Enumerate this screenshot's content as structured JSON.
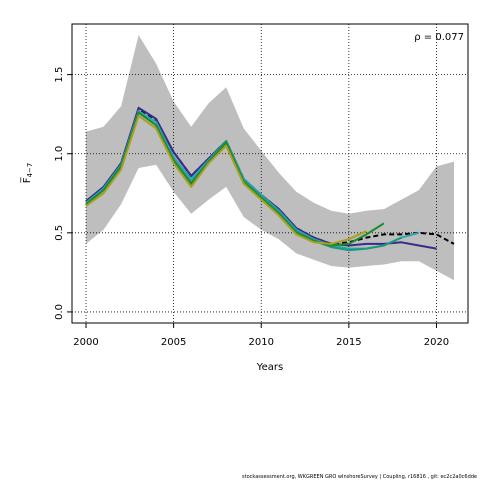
{
  "chart_data": {
    "type": "line",
    "xlabel": "Years",
    "ylabel": "F̅",
    "ylabel_sub": "4−7",
    "annotation": "ρ = 0.077",
    "xlim": [
      1999.2,
      2021.8
    ],
    "ylim": [
      -0.07,
      1.82
    ],
    "xticks": [
      2000,
      2005,
      2010,
      2015,
      2020
    ],
    "yticks": [
      0.0,
      0.5,
      1.0,
      1.5
    ],
    "ytick_labels": [
      "0.0",
      "0.5",
      "1.0",
      "1.5"
    ],
    "grid": true,
    "band": {
      "color": "#bebebe",
      "x": [
        2000,
        2001,
        2002,
        2003,
        2004,
        2005,
        2006,
        2007,
        2008,
        2009,
        2010,
        2011,
        2012,
        2013,
        2014,
        2015,
        2016,
        2017,
        2018,
        2019,
        2020,
        2021
      ],
      "upper": [
        1.14,
        1.17,
        1.3,
        1.75,
        1.57,
        1.33,
        1.17,
        1.32,
        1.42,
        1.16,
        1.02,
        0.88,
        0.76,
        0.69,
        0.64,
        0.62,
        0.64,
        0.65,
        0.71,
        0.77,
        0.92,
        0.95
      ],
      "lower": [
        0.43,
        0.52,
        0.68,
        0.91,
        0.93,
        0.76,
        0.62,
        0.71,
        0.79,
        0.6,
        0.52,
        0.46,
        0.37,
        0.33,
        0.29,
        0.28,
        0.29,
        0.3,
        0.32,
        0.32,
        0.26,
        0.2
      ]
    },
    "series": [
      {
        "color": "#000000",
        "dashed": true,
        "x": [
          2000,
          2001,
          2002,
          2003,
          2004,
          2005,
          2006,
          2007,
          2008,
          2009,
          2010,
          2011,
          2012,
          2013,
          2014,
          2015,
          2016,
          2017,
          2018,
          2019,
          2020,
          2021
        ],
        "values": [
          0.7,
          0.78,
          0.94,
          1.28,
          1.21,
          1.01,
          0.86,
          0.97,
          1.08,
          0.84,
          0.74,
          0.65,
          0.53,
          0.47,
          0.43,
          0.44,
          0.47,
          0.49,
          0.49,
          0.5,
          0.49,
          0.43
        ]
      },
      {
        "color": "#3a2a8a",
        "x": [
          2000,
          2001,
          2002,
          2003,
          2004,
          2005,
          2006,
          2007,
          2008,
          2009,
          2010,
          2011,
          2012,
          2013,
          2014,
          2015,
          2016,
          2017,
          2018,
          2019,
          2020
        ],
        "values": [
          0.7,
          0.79,
          0.94,
          1.29,
          1.22,
          1.01,
          0.86,
          0.97,
          1.08,
          0.84,
          0.74,
          0.65,
          0.53,
          0.47,
          0.43,
          0.42,
          0.43,
          0.43,
          0.44,
          0.42,
          0.4
        ]
      },
      {
        "color": "#2aa6b8",
        "x": [
          2000,
          2001,
          2002,
          2003,
          2004,
          2005,
          2006,
          2007,
          2008,
          2009,
          2010,
          2011,
          2012,
          2013,
          2014,
          2015,
          2016,
          2017,
          2018,
          2019
        ],
        "values": [
          0.69,
          0.78,
          0.93,
          1.27,
          1.2,
          0.98,
          0.84,
          0.96,
          1.08,
          0.84,
          0.74,
          0.64,
          0.52,
          0.46,
          0.42,
          0.4,
          0.4,
          0.42,
          0.47,
          0.5
        ]
      },
      {
        "color": "#1a9a78",
        "x": [
          2000,
          2001,
          2002,
          2003,
          2004,
          2005,
          2006,
          2007,
          2008,
          2009,
          2010,
          2011,
          2012,
          2013,
          2014,
          2015,
          2016,
          2017,
          2018
        ],
        "values": [
          0.68,
          0.77,
          0.92,
          1.26,
          1.18,
          0.96,
          0.82,
          0.95,
          1.08,
          0.83,
          0.73,
          0.63,
          0.51,
          0.45,
          0.41,
          0.39,
          0.4,
          0.42,
          0.47
        ]
      },
      {
        "color": "#1f8a2a",
        "x": [
          2000,
          2001,
          2002,
          2003,
          2004,
          2005,
          2006,
          2007,
          2008,
          2009,
          2010,
          2011,
          2012,
          2013,
          2014,
          2015,
          2016,
          2017
        ],
        "values": [
          0.68,
          0.77,
          0.92,
          1.26,
          1.18,
          0.96,
          0.81,
          0.95,
          1.07,
          0.82,
          0.72,
          0.62,
          0.5,
          0.45,
          0.42,
          0.43,
          0.49,
          0.56
        ]
      },
      {
        "color": "#a8a020",
        "x": [
          2000,
          2001,
          2002,
          2003,
          2004,
          2005,
          2006,
          2007,
          2008,
          2009,
          2010,
          2011,
          2012,
          2013,
          2014,
          2015,
          2016
        ],
        "values": [
          0.67,
          0.75,
          0.9,
          1.24,
          1.16,
          0.94,
          0.79,
          0.94,
          1.05,
          0.81,
          0.71,
          0.61,
          0.49,
          0.44,
          0.43,
          0.46,
          0.51
        ]
      }
    ]
  },
  "footer": "stockassessment.org,  WKGREEN  GRO  wInshoreSurvey  |  Coupling,  r16816 ,  git:  ec2c2a0c6dde"
}
